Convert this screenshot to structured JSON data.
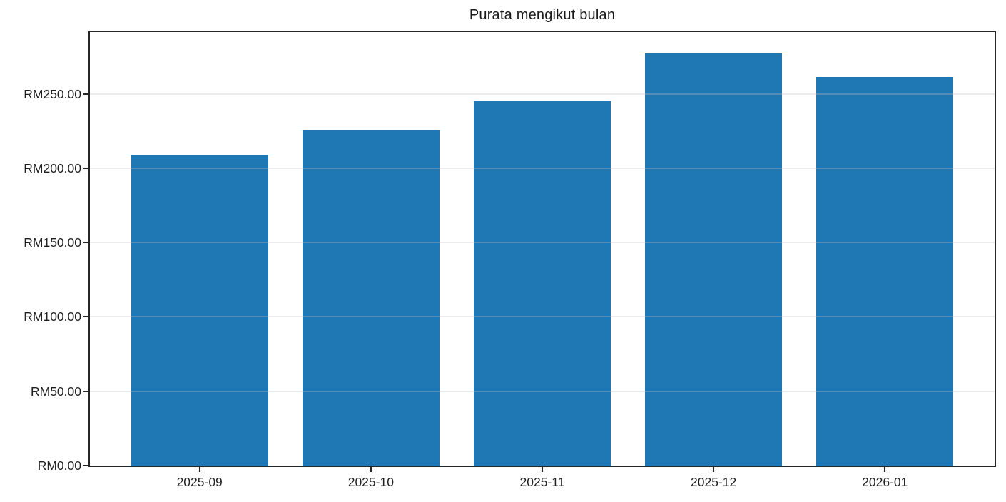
{
  "chart_data": {
    "type": "bar",
    "title": "Purata mengikut bulan",
    "categories": [
      "2025-09",
      "2025-10",
      "2025-11",
      "2025-12",
      "2026-01"
    ],
    "values": [
      208.5,
      225.5,
      245.0,
      277.5,
      261.5
    ],
    "xlabel": "",
    "ylabel": "",
    "currency_prefix": "RM",
    "ytick_values": [
      0,
      50,
      100,
      150,
      200,
      250
    ],
    "ytick_labels": [
      "RM0.00",
      "RM50.00",
      "RM100.00",
      "RM150.00",
      "RM200.00",
      "RM250.00"
    ],
    "ylim": [
      0,
      291.5
    ],
    "grid": true,
    "grid_over_bars": true,
    "legend": false,
    "bar_color": "#1f77b4",
    "spine_color": "#262626",
    "grid_color": "rgba(192,192,192,0.32)",
    "text_color": "#1f1f1f",
    "bar_width_frac": 0.8,
    "x_margin_units": 0.64
  }
}
